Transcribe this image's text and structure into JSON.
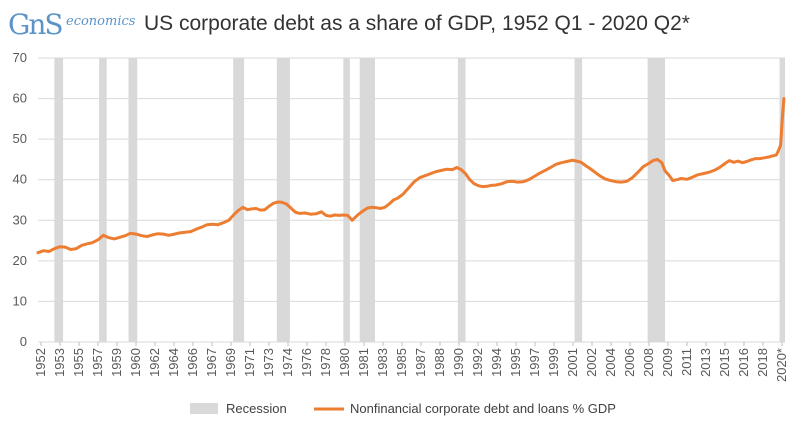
{
  "logo": {
    "mark": "GnS",
    "word": "economics"
  },
  "chart_data": {
    "type": "line",
    "title": "US corporate debt as a share of GDP, 1952 Q1 - 2020 Q2*",
    "xlabel": "",
    "ylabel": "",
    "ylim": [
      0,
      70
    ],
    "yticks": [
      0,
      10,
      20,
      30,
      40,
      50,
      60,
      70
    ],
    "grid": true,
    "legend_position": "bottom",
    "x_tick_labels": [
      "1952",
      "1953",
      "1955",
      "1957",
      "1959",
      "1960",
      "1962",
      "1964",
      "1966",
      "1967",
      "1969",
      "1971",
      "1973",
      "1974",
      "1976",
      "1978",
      "1980",
      "1981",
      "1983",
      "1985",
      "1987",
      "1988",
      "1990",
      "1992",
      "1994",
      "1995",
      "1997",
      "1999",
      "2001",
      "2002",
      "2004",
      "2006",
      "2008",
      "2009",
      "2011",
      "2013",
      "2015",
      "2016",
      "2018",
      "2020*"
    ],
    "recessions": [
      {
        "start": 1953.5,
        "end": 1954.3
      },
      {
        "start": 1957.6,
        "end": 1958.3
      },
      {
        "start": 1960.3,
        "end": 1961.1
      },
      {
        "start": 1969.9,
        "end": 1970.9
      },
      {
        "start": 1973.9,
        "end": 1975.1
      },
      {
        "start": 1980.0,
        "end": 1980.6
      },
      {
        "start": 1981.5,
        "end": 1982.9
      },
      {
        "start": 1990.5,
        "end": 1991.2
      },
      {
        "start": 2001.2,
        "end": 2001.9
      },
      {
        "start": 2007.9,
        "end": 2009.5
      },
      {
        "start": 2020.0,
        "end": 2020.5
      }
    ],
    "series": [
      {
        "name": "Nonfinancial corporate debt and loans % GDP",
        "color": "#ed7d31",
        "points": [
          [
            1952.0,
            22.0
          ],
          [
            1952.5,
            22.5
          ],
          [
            1953.0,
            22.3
          ],
          [
            1953.5,
            23.0
          ],
          [
            1954.0,
            23.5
          ],
          [
            1954.5,
            23.4
          ],
          [
            1955.0,
            22.8
          ],
          [
            1955.5,
            23.0
          ],
          [
            1956.0,
            23.8
          ],
          [
            1956.5,
            24.2
          ],
          [
            1957.0,
            24.5
          ],
          [
            1957.5,
            25.2
          ],
          [
            1958.0,
            26.3
          ],
          [
            1958.5,
            25.7
          ],
          [
            1959.0,
            25.4
          ],
          [
            1959.5,
            25.8
          ],
          [
            1960.0,
            26.2
          ],
          [
            1960.5,
            26.8
          ],
          [
            1961.0,
            26.6
          ],
          [
            1961.5,
            26.2
          ],
          [
            1962.0,
            26.0
          ],
          [
            1962.5,
            26.4
          ],
          [
            1963.0,
            26.7
          ],
          [
            1963.5,
            26.6
          ],
          [
            1964.0,
            26.3
          ],
          [
            1964.5,
            26.6
          ],
          [
            1965.0,
            26.9
          ],
          [
            1966.0,
            27.2
          ],
          [
            1966.5,
            27.8
          ],
          [
            1967.0,
            28.3
          ],
          [
            1967.5,
            28.9
          ],
          [
            1968.0,
            29.0
          ],
          [
            1968.5,
            28.9
          ],
          [
            1969.0,
            29.4
          ],
          [
            1969.5,
            30.0
          ],
          [
            1970.0,
            31.5
          ],
          [
            1970.4,
            32.5
          ],
          [
            1970.8,
            33.2
          ],
          [
            1971.2,
            32.6
          ],
          [
            1971.6,
            32.8
          ],
          [
            1972.0,
            32.9
          ],
          [
            1972.4,
            32.5
          ],
          [
            1972.8,
            32.6
          ],
          [
            1973.2,
            33.5
          ],
          [
            1973.6,
            34.2
          ],
          [
            1974.0,
            34.5
          ],
          [
            1974.4,
            34.4
          ],
          [
            1974.8,
            34.0
          ],
          [
            1975.2,
            33.0
          ],
          [
            1975.6,
            32.0
          ],
          [
            1976.0,
            31.7
          ],
          [
            1976.5,
            31.8
          ],
          [
            1977.0,
            31.5
          ],
          [
            1977.5,
            31.6
          ],
          [
            1978.0,
            32.1
          ],
          [
            1978.4,
            31.2
          ],
          [
            1978.8,
            31.0
          ],
          [
            1979.2,
            31.3
          ],
          [
            1979.6,
            31.2
          ],
          [
            1980.0,
            31.3
          ],
          [
            1980.4,
            31.2
          ],
          [
            1980.8,
            30.0
          ],
          [
            1981.0,
            30.5
          ],
          [
            1981.4,
            31.5
          ],
          [
            1981.8,
            32.3
          ],
          [
            1982.2,
            33.0
          ],
          [
            1982.6,
            33.2
          ],
          [
            1983.0,
            33.1
          ],
          [
            1983.4,
            32.9
          ],
          [
            1983.8,
            33.2
          ],
          [
            1984.2,
            34.0
          ],
          [
            1984.6,
            35.0
          ],
          [
            1985.0,
            35.5
          ],
          [
            1985.5,
            36.5
          ],
          [
            1986.0,
            38.0
          ],
          [
            1986.5,
            39.5
          ],
          [
            1987.0,
            40.5
          ],
          [
            1987.5,
            41.0
          ],
          [
            1988.0,
            41.5
          ],
          [
            1988.5,
            42.0
          ],
          [
            1989.0,
            42.3
          ],
          [
            1989.5,
            42.6
          ],
          [
            1990.0,
            42.5
          ],
          [
            1990.4,
            43.0
          ],
          [
            1990.8,
            42.5
          ],
          [
            1991.2,
            41.5
          ],
          [
            1991.6,
            40.0
          ],
          [
            1992.0,
            39.0
          ],
          [
            1992.4,
            38.5
          ],
          [
            1992.8,
            38.3
          ],
          [
            1993.2,
            38.4
          ],
          [
            1993.6,
            38.6
          ],
          [
            1994.0,
            38.7
          ],
          [
            1994.5,
            39.0
          ],
          [
            1995.0,
            39.5
          ],
          [
            1995.5,
            39.6
          ],
          [
            1996.0,
            39.4
          ],
          [
            1996.5,
            39.5
          ],
          [
            1997.0,
            40.0
          ],
          [
            1997.5,
            40.8
          ],
          [
            1998.0,
            41.6
          ],
          [
            1998.5,
            42.3
          ],
          [
            1999.0,
            43.0
          ],
          [
            1999.5,
            43.8
          ],
          [
            2000.0,
            44.2
          ],
          [
            2000.5,
            44.5
          ],
          [
            2001.0,
            44.8
          ],
          [
            2001.4,
            44.6
          ],
          [
            2001.8,
            44.3
          ],
          [
            2002.2,
            43.5
          ],
          [
            2002.6,
            42.8
          ],
          [
            2003.0,
            42.0
          ],
          [
            2003.5,
            41.0
          ],
          [
            2004.0,
            40.2
          ],
          [
            2004.5,
            39.8
          ],
          [
            2005.0,
            39.5
          ],
          [
            2005.5,
            39.4
          ],
          [
            2006.0,
            39.6
          ],
          [
            2006.5,
            40.5
          ],
          [
            2007.0,
            41.8
          ],
          [
            2007.5,
            43.2
          ],
          [
            2008.0,
            44.0
          ],
          [
            2008.4,
            44.7
          ],
          [
            2008.8,
            45.0
          ],
          [
            2009.2,
            44.2
          ],
          [
            2009.5,
            42.2
          ],
          [
            2009.9,
            41.0
          ],
          [
            2010.2,
            39.8
          ],
          [
            2010.6,
            40.0
          ],
          [
            2011.0,
            40.3
          ],
          [
            2011.5,
            40.1
          ],
          [
            2012.0,
            40.6
          ],
          [
            2012.5,
            41.2
          ],
          [
            2013.0,
            41.5
          ],
          [
            2013.5,
            41.8
          ],
          [
            2014.0,
            42.3
          ],
          [
            2014.5,
            43.0
          ],
          [
            2015.0,
            44.0
          ],
          [
            2015.4,
            44.7
          ],
          [
            2015.8,
            44.3
          ],
          [
            2016.2,
            44.6
          ],
          [
            2016.6,
            44.2
          ],
          [
            2017.0,
            44.5
          ],
          [
            2017.4,
            44.9
          ],
          [
            2017.8,
            45.2
          ],
          [
            2018.2,
            45.2
          ],
          [
            2018.6,
            45.4
          ],
          [
            2019.0,
            45.6
          ],
          [
            2019.4,
            45.9
          ],
          [
            2019.7,
            46.1
          ],
          [
            2019.9,
            47.2
          ],
          [
            2020.1,
            48.5
          ],
          [
            2020.25,
            55.0
          ],
          [
            2020.4,
            60.0
          ]
        ]
      }
    ],
    "legend": [
      {
        "label": "Recession",
        "color": "#d9d9d9",
        "kind": "box"
      },
      {
        "label": "Nonfinancial corporate debt and loans % GDP",
        "color": "#ed7d31",
        "kind": "line"
      }
    ]
  }
}
